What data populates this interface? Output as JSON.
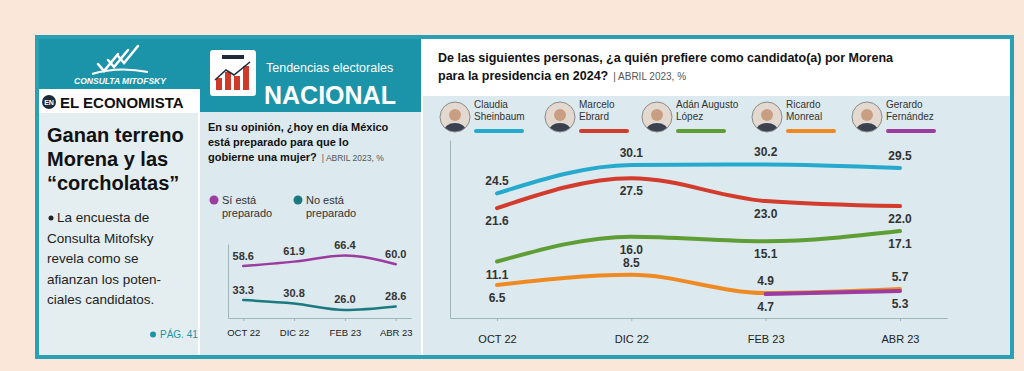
{
  "header": {
    "logo": "CONSULTA MITOFSKY",
    "badge": "EN",
    "newspaper": "EL ECONOMISTA",
    "section": "Tendencias electorales",
    "scope": "NACIONAL"
  },
  "sidebar": {
    "headline": [
      "Ganan terreno",
      "Morena y las",
      "“corcholatas”"
    ],
    "bullet": [
      "La encuesta de",
      "Consulta Mitofsky",
      "revela como se",
      "afianzan los poten-",
      "ciales candidatos."
    ],
    "page_ref": "PÁG. 41"
  },
  "chart_data": [
    {
      "type": "line",
      "title": [
        "En su opinión, ¿hoy en día México",
        "está preparado para que lo",
        "gobierne una mujer?"
      ],
      "subtitle": "| ABRIL 2023, %",
      "categories": [
        "OCT 22",
        "DIC 22",
        "FEB 23",
        "ABR 23"
      ],
      "series": [
        {
          "name": "Sí está preparado",
          "color": "#9c3c9e",
          "values": [
            58.6,
            61.9,
            66.4,
            60.0
          ],
          "value_labels": [
            "58.6",
            "61.9",
            "66.4",
            "60.0"
          ]
        },
        {
          "name": "No está preparado",
          "color": "#1b7a80",
          "values": [
            33.3,
            30.8,
            26.0,
            28.6
          ],
          "value_labels": [
            "33.3",
            "30.8",
            "26.0",
            "28.6"
          ]
        }
      ],
      "ylim": [
        20,
        75
      ],
      "yticks": [],
      "tick_labels": "x",
      "data_labels": true,
      "legend": "top"
    },
    {
      "type": "line",
      "title": [
        "De las siguientes personas, ¿a quién prefiere como candidato(a) por Morena",
        "para la presidencia en 2024?"
      ],
      "subtitle": "| ABRIL 2023, %",
      "categories": [
        "OCT 22",
        "DIC 22",
        "FEB 23",
        "ABR 23"
      ],
      "series": [
        {
          "name": "Claudia Sheinbaum",
          "color": "#25a9cc",
          "values": [
            24.5,
            30.1,
            30.2,
            29.5
          ],
          "value_labels": [
            "24.5",
            "30.1",
            "30.2",
            "29.5"
          ]
        },
        {
          "name": "Marcelo Ebrard",
          "color": "#d33b2c",
          "values": [
            21.6,
            27.5,
            23.0,
            22.0
          ],
          "value_labels": [
            "21.6",
            "27.5",
            "23.0",
            "22.0"
          ]
        },
        {
          "name": "Adán Augusto López",
          "color": "#5f9e35",
          "values": [
            11.1,
            16.0,
            15.1,
            17.1
          ],
          "value_labels": [
            "11.1",
            "16.0",
            "15.1",
            "17.1"
          ]
        },
        {
          "name": "Ricardo Monreal",
          "color": "#ef8a23",
          "values": [
            6.5,
            8.5,
            4.9,
            5.7
          ],
          "value_labels": [
            "6.5",
            "8.5",
            "4.9",
            "5.7"
          ]
        },
        {
          "name": "Gerardo Fernández",
          "color": "#9c3c9e",
          "values": [
            null,
            null,
            4.7,
            5.3
          ],
          "value_labels": [
            null,
            null,
            "4.7",
            "5.3"
          ]
        }
      ],
      "ylim": [
        0,
        35
      ],
      "yticks": [],
      "tick_labels": "x",
      "data_labels": true,
      "legend": "top"
    }
  ]
}
